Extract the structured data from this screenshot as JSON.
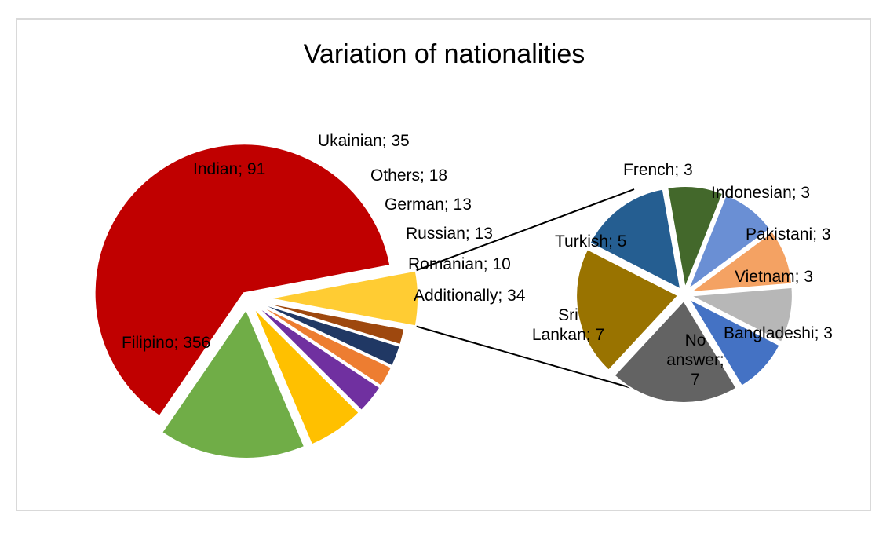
{
  "chart_data": {
    "type": "pie",
    "title": "Variation of nationalities",
    "main_pie": {
      "slices": [
        {
          "label": "Filipino; 356",
          "name": "Filipino",
          "value": 356,
          "color": "#C00000"
        },
        {
          "label": "Indian; 91",
          "name": "Indian",
          "value": 91,
          "color": "#70AD47"
        },
        {
          "label": "Ukainian; 35",
          "name": "Ukainian",
          "value": 35,
          "color": "#FFC000"
        },
        {
          "label": "Others; 18",
          "name": "Others",
          "value": 18,
          "color": "#7030A0"
        },
        {
          "label": "German; 13",
          "name": "German",
          "value": 13,
          "color": "#ED7D31"
        },
        {
          "label": "Russian; 13",
          "name": "Russian",
          "value": 13,
          "color": "#203864"
        },
        {
          "label": "Romanian; 10",
          "name": "Romanian",
          "value": 10,
          "color": "#9E480E"
        },
        {
          "label": "Additionally; 34",
          "name": "Additionally",
          "value": 34,
          "color": "#FFCC33"
        }
      ]
    },
    "secondary_pie": {
      "slices": [
        {
          "label": "French; 3",
          "name": "French",
          "value": 3,
          "color": "#43682B"
        },
        {
          "label": "Indonesian; 3",
          "name": "Indonesian",
          "value": 3,
          "color": "#6A8FD4"
        },
        {
          "label": "Pakistani; 3",
          "name": "Pakistani",
          "value": 3,
          "color": "#F4A263"
        },
        {
          "label": "Vietnam; 3",
          "name": "Vietnam",
          "value": 3,
          "color": "#B7B7B7"
        },
        {
          "label": "Bangladeshi; 3",
          "name": "Bangladeshi",
          "value": 3,
          "color": "#4472C4"
        },
        {
          "label": "No answer; 7",
          "name": "No answer",
          "value": 7,
          "color": "#636363"
        },
        {
          "label": "Sri Lankan; 7",
          "name": "Sri Lankan",
          "value": 7,
          "color": "#997300"
        },
        {
          "label": "Turkish; 5",
          "name": "Turkish",
          "value": 5,
          "color": "#255E91"
        }
      ]
    }
  }
}
